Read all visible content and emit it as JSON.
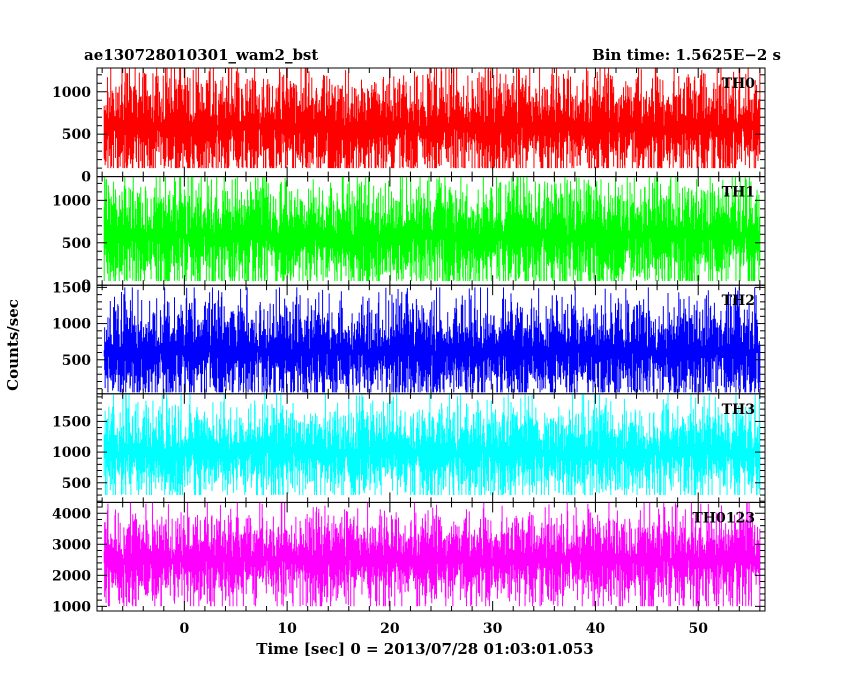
{
  "header": {
    "title": "ae130728010301_wam2_bst",
    "bin_time": "Bin time: 1.5625E−2 s"
  },
  "chart_data": {
    "type": "line",
    "title": "ae130728010301_wam2_bst",
    "subtitle": "Bin time: 1.5625E−2 s",
    "xlabel": "Time [sec] 0 = 2013/07/28 01:03:01.053",
    "ylabel": "Counts/sec",
    "xlim": [
      -8.5,
      56.5
    ],
    "data_x_range": [
      -7.8,
      56.0
    ],
    "x_ticks": [
      0,
      10,
      20,
      30,
      40,
      50
    ],
    "panels": [
      {
        "name": "TH0",
        "color": "#ff0000",
        "ylim": [
          0,
          1280
        ],
        "y_ticks": [
          0,
          500,
          1000
        ],
        "baseline": 580,
        "spread": 330,
        "min": 100,
        "max": 1280
      },
      {
        "name": "TH1",
        "color": "#00ff00",
        "ylim": [
          0,
          1280
        ],
        "y_ticks": [
          0,
          500,
          1000
        ],
        "baseline": 580,
        "spread": 330,
        "min": 50,
        "max": 1280
      },
      {
        "name": "TH2",
        "color": "#0000ff",
        "ylim": [
          30,
          1530
        ],
        "y_ticks": [
          500,
          1000,
          1500
        ],
        "baseline": 620,
        "spread": 360,
        "min": 50,
        "max": 1500
      },
      {
        "name": "TH3",
        "color": "#00ffff",
        "ylim": [
          180,
          1950
        ],
        "y_ticks": [
          500,
          1000,
          1500
        ],
        "baseline": 1000,
        "spread": 380,
        "min": 300,
        "max": 1950
      },
      {
        "name": "TH0123",
        "color": "#ff00ff",
        "ylim": [
          850,
          4350
        ],
        "y_ticks": [
          1000,
          2000,
          3000,
          4000
        ],
        "baseline": 2500,
        "spread": 750,
        "min": 1000,
        "max": 4350
      }
    ]
  }
}
